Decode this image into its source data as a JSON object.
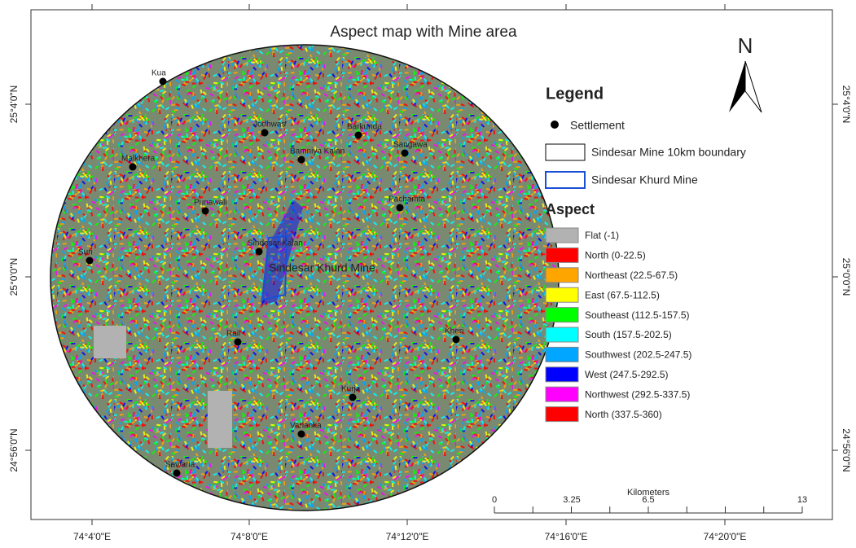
{
  "title": "Aspect map with Mine area",
  "north_arrow": "N",
  "legend": {
    "title": "Legend",
    "items": [
      "Settlement",
      "Sindesar Mine 10km boundary",
      "Sindesar Khurd Mine"
    ],
    "aspect_title": "Aspect",
    "aspect_classes": [
      {
        "label": "Flat (-1)",
        "color": "#b2b2b2"
      },
      {
        "label": "North (0-22.5)",
        "color": "#ff0000"
      },
      {
        "label": "Northeast (22.5-67.5)",
        "color": "#ffa500"
      },
      {
        "label": "East (67.5-112.5)",
        "color": "#ffff00"
      },
      {
        "label": "Southeast (112.5-157.5)",
        "color": "#00ff00"
      },
      {
        "label": "South (157.5-202.5)",
        "color": "#00ffff"
      },
      {
        "label": "Southwest (202.5-247.5)",
        "color": "#00a6ff"
      },
      {
        "label": "West (247.5-292.5)",
        "color": "#0000ff"
      },
      {
        "label": "Northwest (292.5-337.5)",
        "color": "#ff00ff"
      },
      {
        "label": "North (337.5-360)",
        "color": "#ff0000"
      }
    ]
  },
  "scale_bar": {
    "title": "Kilometers",
    "labels": [
      "0",
      "3.25",
      "6.5",
      "13"
    ]
  },
  "longitude_labels": [
    "74°4'0\"E",
    "74°8'0\"E",
    "74°12'0\"E",
    "74°16'0\"E",
    "74°20'0\"E"
  ],
  "latitude_labels": [
    "25°4'0\"N",
    "25°0'0\"N",
    "24°56'0\"N"
  ],
  "settlements": [
    "Kua",
    "Jodhwas",
    "Barkunda",
    "Sangawa",
    "Bamniya Kalan",
    "Malkhera",
    "Punawali",
    "Pachamta",
    "Suri",
    "Sindesar Kalan",
    "Rail",
    "Kheri",
    "Kurja",
    "Varlanka",
    "Sawaria"
  ],
  "mine_label": "Sindesar Khurd Mine"
}
